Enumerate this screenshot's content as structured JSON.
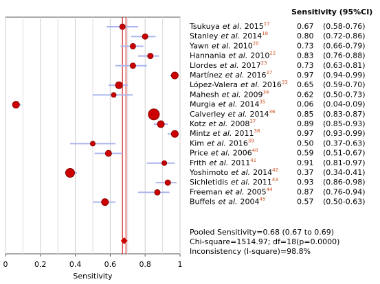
{
  "chart_data": {
    "type": "forest",
    "header": "Sensitivity (95%CI)",
    "xlabel": "Sensitivity",
    "et_al": "et al.",
    "xlim": [
      0,
      1
    ],
    "xticks": [
      0,
      0.2,
      0.4,
      0.6,
      0.8,
      1
    ],
    "xminorticks": [
      0.1,
      0.3,
      0.5,
      0.7,
      0.9
    ],
    "grid": true,
    "color": "#cc0000",
    "ci_color": "#aab4ee",
    "authors": [
      "Tsukuya",
      "Stanley",
      "Yawn",
      "Hannania",
      "Llordes",
      "Martínez",
      "López-Valera",
      "Mahesh",
      "Murgia",
      "Calverley",
      "Kotz",
      "Mintz",
      "Kim",
      "Price",
      "Frith",
      "Yoshimoto",
      "Sichletidis",
      "Freeman",
      "Buffels"
    ],
    "years": [
      "2015",
      "2014",
      "2010",
      "2010",
      "2017",
      "2016",
      "2016",
      "2009",
      "2014",
      "2014",
      "2008",
      "2011",
      "2016",
      "2006",
      "2011",
      "2014",
      "2011",
      "2005",
      "2004"
    ],
    "refs": [
      "17",
      "18",
      "20",
      "22",
      "23",
      "27",
      "33",
      "34",
      "35",
      "36",
      "37",
      "38",
      "39",
      "40",
      "41",
      "42",
      "43",
      "44",
      "45"
    ],
    "values": [
      0.67,
      0.8,
      0.73,
      0.83,
      0.73,
      0.97,
      0.65,
      0.62,
      0.06,
      0.85,
      0.89,
      0.97,
      0.5,
      0.59,
      0.91,
      0.37,
      0.93,
      0.87,
      0.57
    ],
    "value_labels": [
      "0.67",
      "0.80",
      "0.73",
      "0.83",
      "0.73",
      "0.97",
      "0.65",
      "0.62",
      "0.06",
      "0.85",
      "0.89",
      "0.97",
      "0.50",
      "0.59",
      "0.91",
      "0.37",
      "0.93",
      "0.87",
      "0.57"
    ],
    "ci_low": [
      0.58,
      0.72,
      0.66,
      0.76,
      0.63,
      0.94,
      0.59,
      0.5,
      0.04,
      0.83,
      0.85,
      0.93,
      0.37,
      0.51,
      0.81,
      0.34,
      0.86,
      0.76,
      0.5
    ],
    "ci_high": [
      0.76,
      0.86,
      0.79,
      0.88,
      0.81,
      0.99,
      0.7,
      0.73,
      0.09,
      0.87,
      0.93,
      0.99,
      0.63,
      0.67,
      0.97,
      0.41,
      0.98,
      0.94,
      0.63
    ],
    "ci_labels": [
      "(0.58-0.76)",
      "(0.72-0.86)",
      "(0.66-0.79)",
      "(0.76-0.88)",
      "(0.63-0.81)",
      "(0.94-0.99)",
      "(0.59-0.70)",
      "(0.50-0.73)",
      "(0.04-0.09)",
      "(0.83-0.87)",
      "(0.85-0.93)",
      "(0.93-0.99)",
      "(0.37-0.63)",
      "(0.51-0.67)",
      "(0.81-0.97)",
      "(0.34-0.41)",
      "(0.86-0.98)",
      "(0.76-0.94)",
      "(0.50-0.63)"
    ],
    "weights": [
      4,
      4,
      4,
      4,
      4,
      5,
      5,
      3.5,
      5,
      8,
      5,
      5,
      3.5,
      4.5,
      3.5,
      6.5,
      4,
      4,
      5
    ],
    "pooled": {
      "value": 0.68,
      "low": 0.67,
      "high": 0.69
    },
    "summary": [
      "Pooled Sensitivity=0.68 (0.67 to 0.69)",
      "Chi-square=1514.97; df=18(p=0.0000)",
      "Inconsistency (I-square)=98.8%"
    ]
  }
}
